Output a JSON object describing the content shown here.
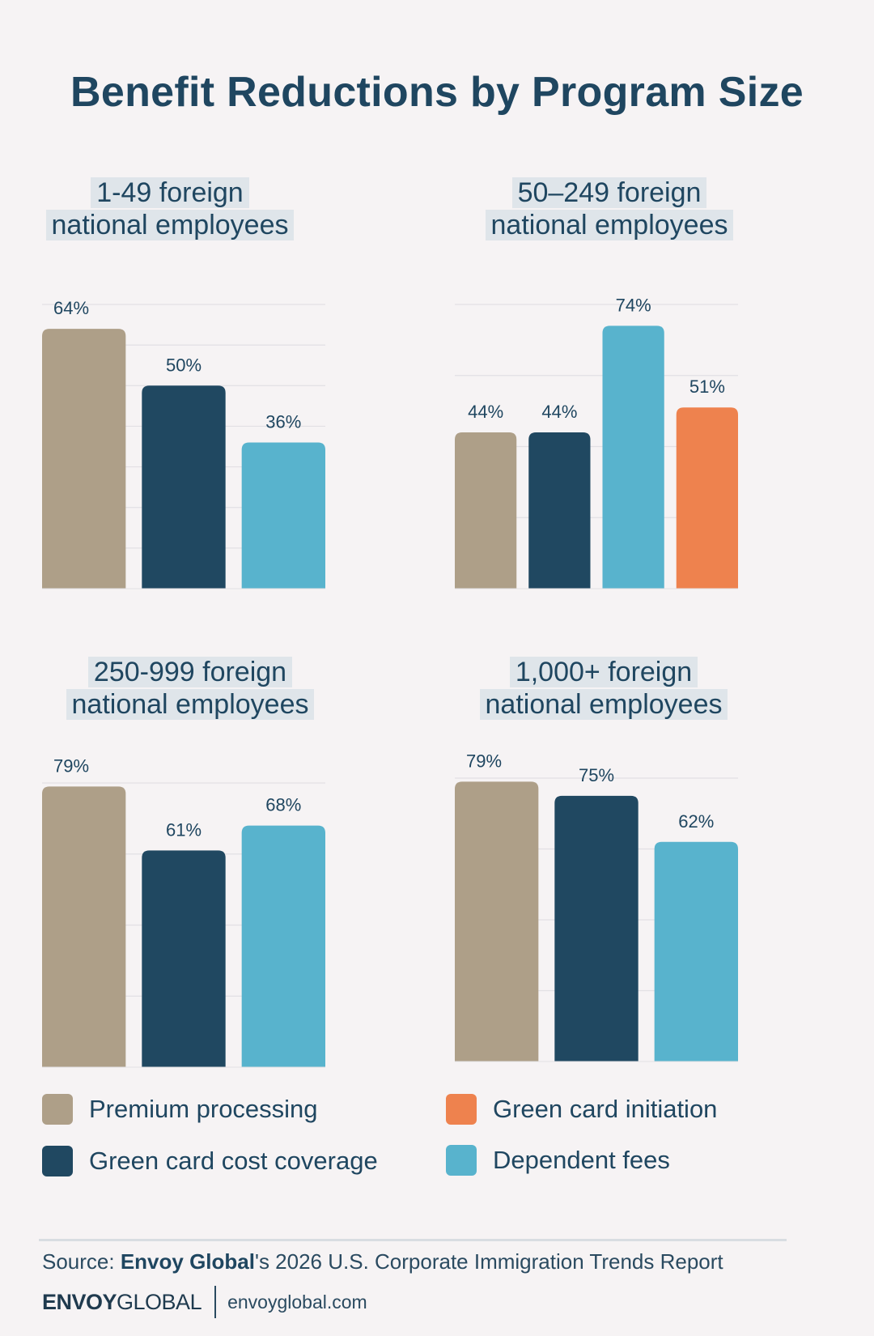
{
  "title": "Benefit Reductions by Program Size",
  "colors": {
    "premium_processing": "#ae9f88",
    "green_card_cost_coverage": "#204861",
    "dependent_fees": "#58b3cd",
    "green_card_initiation": "#ee824e"
  },
  "chart_data": [
    {
      "type": "bar",
      "title": "1-49 foreign national employees",
      "title_lines": [
        "1-49 foreign",
        "national employees"
      ],
      "categories": [
        "Premium processing",
        "Green card cost coverage",
        "Dependent fees"
      ],
      "values": [
        64,
        50,
        36
      ],
      "labels": [
        "64%",
        "50%",
        "36%"
      ],
      "ylim": [
        0,
        70
      ],
      "grid": true
    },
    {
      "type": "bar",
      "title": "50–249 foreign national employees",
      "title_lines": [
        "50–249 foreign",
        "national employees"
      ],
      "categories": [
        "Premium processing",
        "Green card cost coverage",
        "Dependent fees",
        "Green card initiation"
      ],
      "values": [
        44,
        44,
        74,
        51
      ],
      "labels": [
        "44%",
        "44%",
        "74%",
        "51%"
      ],
      "ylim": [
        0,
        80
      ],
      "grid": true
    },
    {
      "type": "bar",
      "title": "250-999 foreign national employees",
      "title_lines": [
        "250-999 foreign",
        "national employees"
      ],
      "categories": [
        "Premium processing",
        "Green card cost coverage",
        "Dependent fees"
      ],
      "values": [
        79,
        61,
        68
      ],
      "labels": [
        "79%",
        "61%",
        "68%"
      ],
      "ylim": [
        0,
        80
      ],
      "grid": true
    },
    {
      "type": "bar",
      "title": "1,000+ foreign national employees",
      "title_lines": [
        "1,000+ foreign",
        "national employees"
      ],
      "categories": [
        "Premium processing",
        "Green card cost coverage",
        "Dependent fees"
      ],
      "values": [
        79,
        75,
        62
      ],
      "labels": [
        "79%",
        "75%",
        "62%"
      ],
      "ylim": [
        0,
        80
      ],
      "grid": true
    }
  ],
  "legend": [
    {
      "label": "Premium processing",
      "color": "#ae9f88"
    },
    {
      "label": "Green card initiation",
      "color": "#ee824e"
    },
    {
      "label": "Green card cost coverage",
      "color": "#204861"
    },
    {
      "label": "Dependent fees",
      "color": "#58b3cd"
    }
  ],
  "footer": {
    "source_prefix": "Source: ",
    "source_brand": "Envoy Global",
    "source_suffix": "'s 2026 U.S. Corporate Immigration Trends Report",
    "logo_bold": "ENVOY",
    "logo_regular": "GLOBAL",
    "url": "envoyglobal.com"
  }
}
